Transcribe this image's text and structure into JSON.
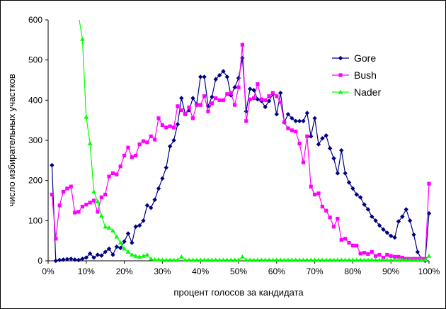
{
  "chart_data": {
    "type": "line",
    "xlabel": "процент голосов за кандидата",
    "ylabel": "число избирательных участков",
    "xlim": [
      0,
      100
    ],
    "ylim": [
      0,
      600
    ],
    "x_ticks": [
      0,
      10,
      20,
      30,
      40,
      50,
      60,
      70,
      80,
      90,
      100
    ],
    "x_tick_labels": [
      "0%",
      "10%",
      "20%",
      "30%",
      "40%",
      "50%",
      "60%",
      "70%",
      "80%",
      "90%",
      "100%"
    ],
    "y_ticks": [
      0,
      100,
      200,
      300,
      400,
      500,
      600
    ],
    "y_tick_labels": [
      "0",
      "100",
      "200",
      "300",
      "400",
      "500",
      "600"
    ],
    "grid": false,
    "legend_position": "right",
    "x": [
      1,
      2,
      3,
      4,
      5,
      6,
      7,
      8,
      9,
      10,
      11,
      12,
      13,
      14,
      15,
      16,
      17,
      18,
      19,
      20,
      21,
      22,
      23,
      24,
      25,
      26,
      27,
      28,
      29,
      30,
      31,
      32,
      33,
      34,
      35,
      36,
      37,
      38,
      39,
      40,
      41,
      42,
      43,
      44,
      45,
      46,
      47,
      48,
      49,
      50,
      51,
      52,
      53,
      54,
      55,
      56,
      57,
      58,
      59,
      60,
      61,
      62,
      63,
      64,
      65,
      66,
      67,
      68,
      69,
      70,
      71,
      72,
      73,
      74,
      75,
      76,
      77,
      78,
      79,
      80,
      81,
      82,
      83,
      84,
      85,
      86,
      87,
      88,
      89,
      90,
      91,
      92,
      93,
      94,
      95,
      96,
      97,
      98,
      99,
      100
    ],
    "series": [
      {
        "name": "Gore",
        "color": "#000080",
        "marker": "diamond",
        "values": [
          238,
          0,
          2,
          3,
          4,
          5,
          3,
          2,
          5,
          8,
          18,
          8,
          15,
          13,
          22,
          30,
          15,
          35,
          32,
          48,
          68,
          45,
          85,
          88,
          100,
          138,
          132,
          152,
          180,
          205,
          232,
          285,
          300,
          340,
          405,
          365,
          375,
          405,
          390,
          458,
          458,
          385,
          408,
          452,
          462,
          472,
          458,
          412,
          432,
          455,
          505,
          372,
          428,
          425,
          402,
          398,
          383,
          398,
          415,
          365,
          418,
          345,
          365,
          355,
          348,
          348,
          348,
          368,
          310,
          355,
          290,
          305,
          312,
          280,
          255,
          218,
          275,
          218,
          195,
          180,
          165,
          158,
          140,
          128,
          110,
          100,
          88,
          78,
          70,
          62,
          58,
          98,
          110,
          128,
          100,
          65,
          22,
          5,
          0,
          118
        ]
      },
      {
        "name": "Bush",
        "color": "#ff00ff",
        "marker": "square",
        "values": [
          165,
          55,
          138,
          172,
          180,
          185,
          120,
          122,
          135,
          140,
          145,
          150,
          122,
          158,
          165,
          210,
          218,
          215,
          235,
          262,
          282,
          258,
          262,
          290,
          298,
          295,
          310,
          302,
          355,
          338,
          332,
          335,
          332,
          385,
          375,
          365,
          382,
          355,
          388,
          388,
          410,
          372,
          392,
          405,
          400,
          400,
          415,
          418,
          388,
          432,
          538,
          348,
          402,
          405,
          440,
          402,
          400,
          410,
          418,
          410,
          395,
          345,
          330,
          325,
          322,
          292,
          245,
          310,
          185,
          165,
          168,
          135,
          125,
          108,
          85,
          105,
          52,
          55,
          45,
          38,
          38,
          18,
          20,
          17,
          22,
          12,
          15,
          8,
          15,
          12,
          10,
          10,
          8,
          5,
          5,
          5,
          5,
          5,
          5,
          192
        ]
      },
      {
        "name": "Nader",
        "color": "#00ff00",
        "marker": "triangle",
        "values": [
          null,
          null,
          null,
          null,
          null,
          null,
          null,
          610,
          552,
          358,
          292,
          172,
          148,
          112,
          85,
          82,
          75,
          60,
          45,
          30,
          22,
          15,
          12,
          10,
          12,
          15,
          5,
          3,
          3,
          2,
          2,
          2,
          2,
          2,
          10,
          2,
          2,
          2,
          2,
          2,
          2,
          2,
          2,
          2,
          2,
          2,
          2,
          2,
          2,
          2,
          10,
          2,
          2,
          2,
          2,
          2,
          2,
          2,
          2,
          2,
          2,
          2,
          2,
          2,
          2,
          2,
          2,
          2,
          2,
          2,
          2,
          2,
          2,
          2,
          2,
          2,
          2,
          2,
          2,
          2,
          2,
          2,
          2,
          2,
          2,
          2,
          2,
          2,
          2,
          2,
          2,
          2,
          2,
          2,
          2,
          2,
          2,
          2,
          2,
          12
        ]
      }
    ]
  }
}
